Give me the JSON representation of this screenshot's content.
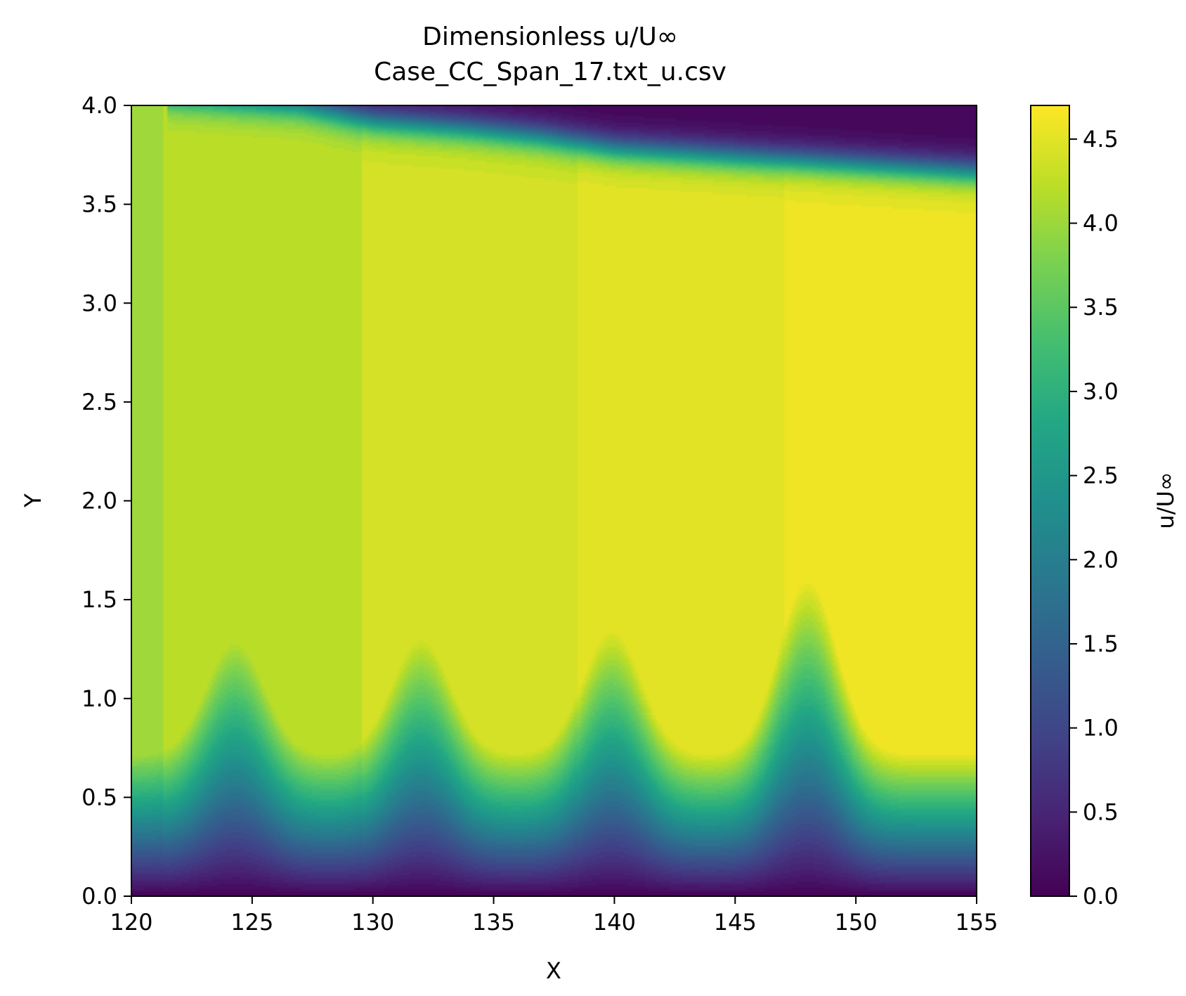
{
  "chart_data": {
    "type": "heatmap",
    "title_line1": "Dimensionless u/U∞",
    "title_line2": "Case_CC_Span_17.txt_u.csv",
    "xlabel": "X",
    "ylabel": "Y",
    "xlim": [
      120,
      155
    ],
    "ylim": [
      0.0,
      4.0
    ],
    "x_ticks": [
      "120",
      "125",
      "130",
      "135",
      "140",
      "145",
      "150",
      "155"
    ],
    "y_ticks": [
      "0.0",
      "0.5",
      "1.0",
      "1.5",
      "2.0",
      "2.5",
      "3.0",
      "3.5",
      "4.0"
    ],
    "colorbar": {
      "label": "u/U∞",
      "range": [
        0.0,
        4.7
      ],
      "ticks": [
        "0.0",
        "0.5",
        "1.0",
        "1.5",
        "2.0",
        "2.5",
        "3.0",
        "3.5",
        "4.0",
        "4.5"
      ],
      "colormap": "viridis"
    },
    "field": {
      "free_stream_bands": [
        {
          "x_min": 120,
          "x_max": 121.3,
          "u": 4.05
        },
        {
          "x_min": 121.3,
          "x_max": 129.5,
          "u": 4.25
        },
        {
          "x_min": 129.5,
          "x_max": 138.5,
          "u": 4.4
        },
        {
          "x_min": 138.5,
          "x_max": 147,
          "u": 4.52
        },
        {
          "x_min": 147,
          "x_max": 155,
          "u": 4.6
        }
      ],
      "wall_crests": [
        {
          "x": 124.3,
          "height": 1.3
        },
        {
          "x": 132.0,
          "height": 1.3
        },
        {
          "x": 139.9,
          "height": 1.35
        },
        {
          "x": 148.0,
          "height": 1.6
        }
      ],
      "top_shear_layer": {
        "points": [
          [
            121.5,
            4.05
          ],
          [
            127,
            4.0
          ],
          [
            130,
            3.92
          ],
          [
            134,
            3.88
          ],
          [
            137,
            3.84
          ],
          [
            140,
            3.78
          ],
          [
            145,
            3.74
          ],
          [
            150,
            3.7
          ],
          [
            155,
            3.66
          ]
        ],
        "low_speed_u": 0.05
      }
    }
  }
}
